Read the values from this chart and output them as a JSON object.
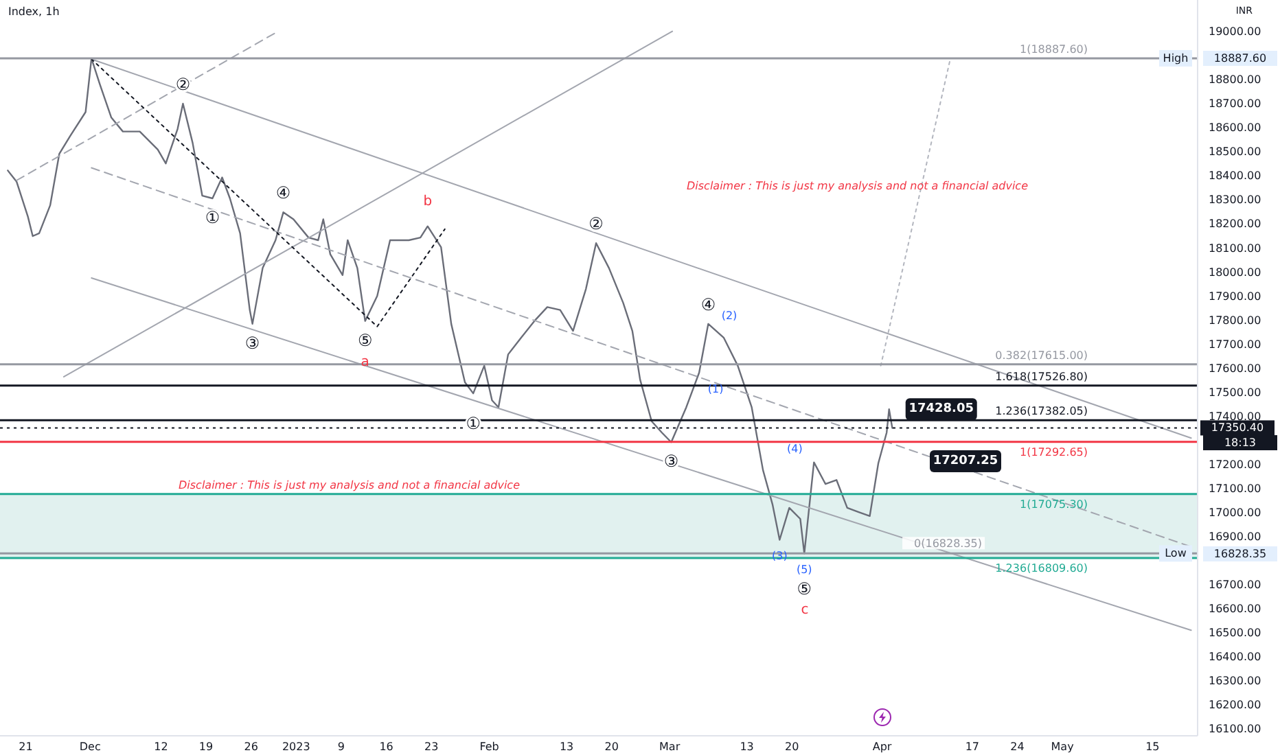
{
  "chart_data": {
    "type": "line",
    "title": "Index, 1h",
    "ylabel": "INR",
    "xlim": [
      "2022-11-17",
      "2023-05-22"
    ],
    "xticks": [
      {
        "value": "2022-11-21",
        "label": "21"
      },
      {
        "value": "2022-12-01",
        "label": "Dec"
      },
      {
        "value": "2022-12-12",
        "label": "12"
      },
      {
        "value": "2022-12-19",
        "label": "19"
      },
      {
        "value": "2022-12-26",
        "label": "26"
      },
      {
        "value": "2023-01-02",
        "label": "2023"
      },
      {
        "value": "2023-01-09",
        "label": "9"
      },
      {
        "value": "2023-01-16",
        "label": "16"
      },
      {
        "value": "2023-01-23",
        "label": "23"
      },
      {
        "value": "2023-02-01",
        "label": "Feb"
      },
      {
        "value": "2023-02-13",
        "label": "13"
      },
      {
        "value": "2023-02-20",
        "label": "20"
      },
      {
        "value": "2023-03-01",
        "label": "Mar"
      },
      {
        "value": "2023-03-13",
        "label": "13"
      },
      {
        "value": "2023-03-20",
        "label": "20"
      },
      {
        "value": "2023-04-03",
        "label": "Apr"
      },
      {
        "value": "2023-04-17",
        "label": "17"
      },
      {
        "value": "2023-04-24",
        "label": "24"
      },
      {
        "value": "2023-05-01",
        "label": "May"
      },
      {
        "value": "2023-05-15",
        "label": "15"
      }
    ],
    "ylim": [
      16070,
      19130
    ],
    "yticks": [
      {
        "value": 16100,
        "label": "16100.00"
      },
      {
        "value": 16200,
        "label": "16200.00"
      },
      {
        "value": 16300,
        "label": "16300.00"
      },
      {
        "value": 16400,
        "label": "16400.00"
      },
      {
        "value": 16500,
        "label": "16500.00"
      },
      {
        "value": 16600,
        "label": "16600.00"
      },
      {
        "value": 16700,
        "label": "16700.00"
      },
      {
        "value": 16900,
        "label": "16900.00"
      },
      {
        "value": 17000,
        "label": "17000.00"
      },
      {
        "value": 17100,
        "label": "17100.00"
      },
      {
        "value": 17200,
        "label": "17200.00"
      },
      {
        "value": 17400,
        "label": "17400.00"
      },
      {
        "value": 17500,
        "label": "17500.00"
      },
      {
        "value": 17600,
        "label": "17600.00"
      },
      {
        "value": 17700,
        "label": "17700.00"
      },
      {
        "value": 17800,
        "label": "17800.00"
      },
      {
        "value": 17900,
        "label": "17900.00"
      },
      {
        "value": 18000,
        "label": "18000.00"
      },
      {
        "value": 18100,
        "label": "18100.00"
      },
      {
        "value": 18200,
        "label": "18200.00"
      },
      {
        "value": 18300,
        "label": "18300.00"
      },
      {
        "value": 18400,
        "label": "18400.00"
      },
      {
        "value": 18500,
        "label": "18500.00"
      },
      {
        "value": 18600,
        "label": "18600.00"
      },
      {
        "value": 18700,
        "label": "18700.00"
      },
      {
        "value": 18800,
        "label": "18800.00"
      },
      {
        "value": 19000,
        "label": "19000.00"
      }
    ],
    "series": [
      {
        "color": "#6a6d78",
        "x": [
          "2022-11-18T05:00",
          "2022-11-19T14:00",
          "2022-11-21T08:00",
          "2022-11-22T02:00",
          "2022-11-23T02:00",
          "2022-11-24T19:00",
          "2022-11-26T05:00",
          "2022-11-27T22:00",
          "2022-11-30T07:00",
          "2022-12-01T05:00",
          "2022-12-02T12:00",
          "2022-12-04T07:00",
          "2022-12-06T02:00",
          "2022-12-08T17:00",
          "2022-12-11T12:00",
          "2022-12-12T18:00",
          "2022-12-14T14:00",
          "2022-12-15T10:00",
          "2022-12-16T22:00",
          "2022-12-18T10:00",
          "2022-12-20T00:00",
          "2022-12-21T12:00",
          "2022-12-22T17:00",
          "2022-12-24T07:00",
          "2022-12-25T19:00",
          "2022-12-26T05:00",
          "2022-12-27T19:00",
          "2022-12-29T19:00",
          "2022-12-31T00:00",
          "2023-01-01T14:00",
          "2023-01-03T22:00",
          "2023-01-05T10:00",
          "2023-01-06T05:00",
          "2023-01-07T07:00",
          "2023-01-09T05:00",
          "2023-01-10T00:00",
          "2023-01-11T12:00",
          "2023-01-12T17:00",
          "2023-01-14T14:00",
          "2023-01-16T14:00",
          "2023-01-19T12:00",
          "2023-01-21T07:00",
          "2023-01-22T10:00",
          "2023-01-24T12:00",
          "2023-01-26T02:00",
          "2023-01-28T05:00",
          "2023-01-29T12:00",
          "2023-01-31T05:00",
          "2023-02-01T10:00",
          "2023-02-02T10:00",
          "2023-02-03T22:00",
          "2023-02-05T22:00",
          "2023-02-08T00:00",
          "2023-02-10T00:00",
          "2023-02-12T00:00",
          "2023-02-14T00:00",
          "2023-02-16T00:00",
          "2023-02-17T14:00",
          "2023-02-19T14:00",
          "2023-02-21T19:00",
          "2023-02-23T05:00",
          "2023-02-24T10:00",
          "2023-02-26T05:00",
          "2023-02-27T19:00",
          "2023-03-01T06:00",
          "2023-03-03T14:00",
          "2023-03-05T14:00",
          "2023-03-07T00:00",
          "2023-03-09T10:00",
          "2023-03-11T14:00",
          "2023-03-13T18:00",
          "2023-03-15T12:00",
          "2023-03-17T00:00",
          "2023-03-18T02:00",
          "2023-03-19T14:00",
          "2023-03-21T07:00",
          "2023-03-21T22:00",
          "2023-03-23T10:00",
          "2023-03-25T05:00",
          "2023-03-26T22:00",
          "2023-03-28T14:00",
          "2023-03-30T07:00",
          "2023-04-01T02:00",
          "2023-04-02T10:00",
          "2023-04-03T17:00",
          "2023-04-04T02:00",
          "2023-04-04T14:00"
        ],
        "values": [
          18421,
          18374,
          18229,
          18148,
          18160,
          18276,
          18490,
          18565,
          18664,
          18887,
          18780,
          18641,
          18583,
          18583,
          18508,
          18450,
          18594,
          18699,
          18536,
          18316,
          18305,
          18392,
          18305,
          18160,
          17841,
          17783,
          18015,
          18131,
          18247,
          18218,
          18142,
          18131,
          18218,
          18073,
          17986,
          18131,
          18015,
          17795,
          17899,
          18131,
          18131,
          18142,
          18189,
          18102,
          17783,
          17540,
          17494,
          17609,
          17465,
          17436,
          17656,
          17725,
          17795,
          17853,
          17841,
          17754,
          17928,
          18119,
          18015,
          17870,
          17754,
          17551,
          17378,
          17331,
          17291,
          17436,
          17580,
          17783,
          17725,
          17609,
          17436,
          17175,
          17030,
          16885,
          17018,
          16972,
          16828,
          17207,
          17117,
          17134,
          17018,
          17001,
          16984,
          17204,
          17331,
          17428,
          17350
        ]
      },
      {
        "color": "#a3a6af",
        "x": [
          "2022-12-01T05:00",
          "2023-05-21T00:00"
        ],
        "values": [
          18884,
          17308
        ]
      },
      {
        "color": "#a3a6af",
        "line_style": "dashed",
        "x": [
          "2022-12-01T05:00",
          "2023-05-21T00:00"
        ],
        "values": [
          18432,
          16856
        ]
      },
      {
        "color": "#a3a6af",
        "x": [
          "2022-12-01T05:00",
          "2023-05-21T00:00"
        ],
        "values": [
          17974,
          16509
        ]
      },
      {
        "color": "#a3a6af",
        "x": [
          "2022-11-26T22:00",
          "2023-03-01T10:00"
        ],
        "values": [
          17563,
          19000
        ]
      },
      {
        "color": "#a3a6af",
        "line_style": "dashed",
        "x": [
          "2022-11-19T14:00",
          "2022-12-30T05:00"
        ],
        "values": [
          18380,
          19000
        ]
      },
      {
        "color": "#131722",
        "line_style": "dotted",
        "x": [
          "2022-12-01T05:00",
          "2023-01-14T14:00",
          "2023-01-25T02:00"
        ],
        "values": [
          18884,
          17772,
          18177
        ]
      },
      {
        "color": "#b2b5be",
        "line_style": "dotted",
        "x": [
          "2023-04-02T19:00",
          "2023-04-13T14:00"
        ],
        "values": [
          17609,
          18884
        ]
      }
    ],
    "ref_lines": [
      {
        "axis": "y",
        "value": 18887.6,
        "label": "1(18887.60)",
        "color": "#9598a1"
      },
      {
        "axis": "y",
        "value": 17615,
        "label": "0.382(17615.00)",
        "color": "#9598a1"
      },
      {
        "axis": "y",
        "value": 17526.8,
        "label": "1.618(17526.80)",
        "color": "#131722"
      },
      {
        "axis": "y",
        "value": 17382.05,
        "label": "1.236(17382.05)",
        "color": "#131722"
      },
      {
        "axis": "y",
        "value": 17350.4,
        "label": "17350.40",
        "color": "#131722",
        "line_style": "dotted"
      },
      {
        "axis": "y",
        "value": 17292.65,
        "label": "1(17292.65)",
        "color": "#f23645"
      },
      {
        "axis": "y",
        "value": 17075.3,
        "label": "1(17075.30)",
        "color": "#22ab94"
      },
      {
        "axis": "y",
        "value": 16828.35,
        "label": "0(16828.35)",
        "color": "#9598a1"
      },
      {
        "axis": "y",
        "value": 16809.6,
        "label": "1.236(16809.60)",
        "color": "#22ab94"
      }
    ],
    "bands": [
      {
        "axis": "y",
        "from": 16809.6,
        "to": 17075.3,
        "color": "#d4ebe8"
      }
    ],
    "annotations": [
      "Disclaimer : This is just my analysis and not a financial advice",
      "Disclaimer : This is just my analysis and not a financial advice",
      {
        "text": "①",
        "x": "2022-12-20T00:00",
        "y": 18305
      },
      {
        "text": "②",
        "x": "2022-12-15T10:00",
        "y": 18699
      },
      {
        "text": "③",
        "x": "2022-12-26T05:00",
        "y": 17783
      },
      {
        "text": "④",
        "x": "2022-12-31T00:00",
        "y": 18247
      },
      {
        "text": "⑤",
        "x": "2023-01-12T17:00",
        "y": 17795
      },
      {
        "text": "a",
        "x": "2023-01-12T17:00",
        "y": 17795
      },
      {
        "text": "b",
        "x": "2023-01-22T10:00",
        "y": 18189
      },
      {
        "text": "①",
        "x": "2023-01-29T12:00",
        "y": 17494
      },
      {
        "text": "②",
        "x": "2023-02-17T14:00",
        "y": 18119
      },
      {
        "text": "③",
        "x": "2023-03-01T06:00",
        "y": 17291
      },
      {
        "text": "④",
        "x": "2023-03-07T00:00",
        "y": 17783
      },
      {
        "text": "(2)",
        "x": "2023-03-09T10:00",
        "y": 17725
      },
      {
        "text": "(1)",
        "x": "2023-03-05T14:00",
        "y": 17580
      },
      {
        "text": "(4)",
        "x": "2023-03-23T10:00",
        "y": 17207
      },
      {
        "text": "(3)",
        "x": "2023-03-18T02:00",
        "y": 16885
      },
      {
        "text": "(5)",
        "x": "2023-03-21T22:00",
        "y": 16828
      },
      {
        "text": "⑤",
        "x": "2023-03-21T22:00",
        "y": 16828
      },
      "c",
      {
        "text": "17428.05",
        "x": "2023-04-04T02:00",
        "y": 17428.05
      },
      "17207.25",
      {
        "text": "High",
        "y": 18887.6
      },
      "18887.60",
      {
        "text": "Low",
        "y": 16828.35
      },
      "16828.35",
      "18:13"
    ]
  }
}
